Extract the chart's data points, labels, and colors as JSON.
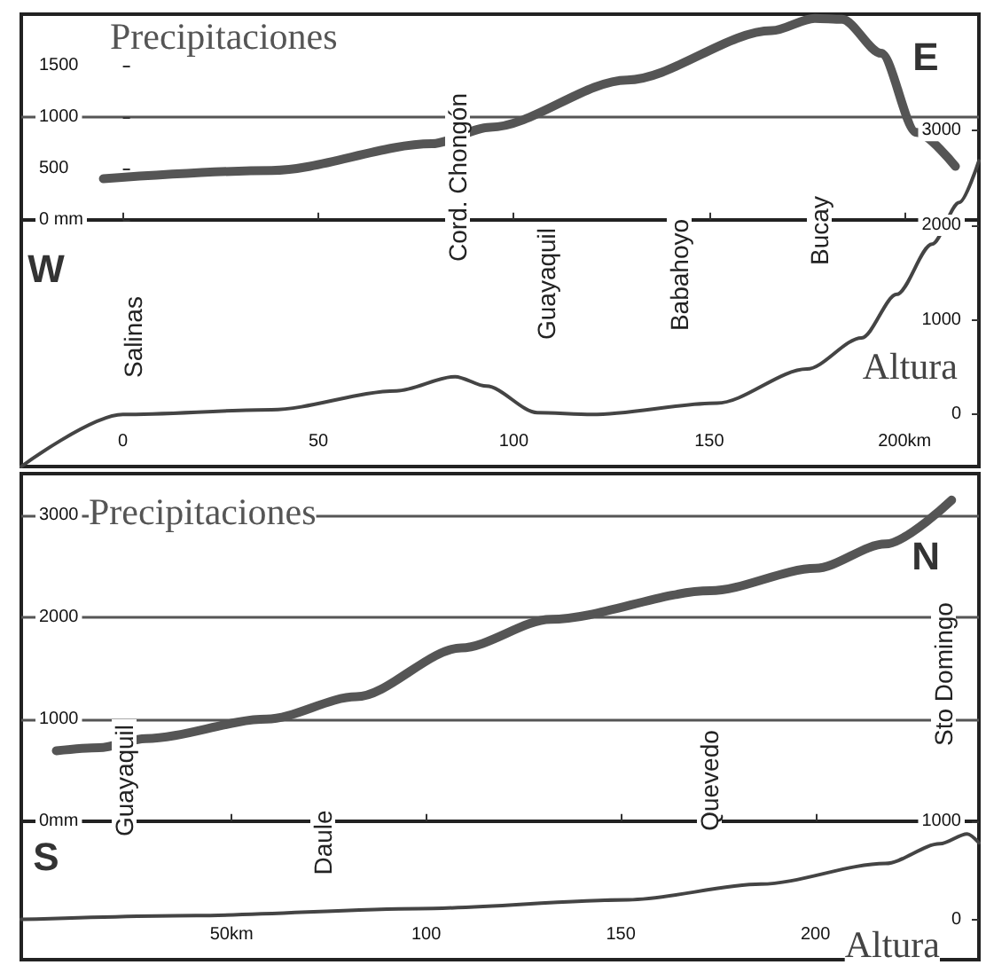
{
  "chart_data": [
    {
      "type": "line",
      "xlim": [
        -26,
        219
      ],
      "xticks": [
        0,
        50,
        100,
        150,
        {
          "value": 200,
          "label": "200km"
        }
      ],
      "ylim": [
        -2400,
        2000
      ],
      "yticks": [
        {
          "value": 0,
          "label": "0 mm"
        },
        500,
        1000,
        1500
      ],
      "y2lim": [
        -550,
        4230
      ],
      "y2ticks": [
        0,
        1000,
        2000,
        3000
      ],
      "legend": false,
      "marker": "none",
      "line_style": "solid",
      "ref_lines": [
        {
          "axis": "y",
          "value": 0
        },
        {
          "axis": "y",
          "value": 1000
        }
      ],
      "annotations": [
        "W",
        "E",
        "Salinas",
        "Cord. Chongón",
        "Guayaquil",
        "Babahoyo",
        "Bucay"
      ],
      "series": [
        {
          "name": "Precipitaciones",
          "color": "#555555",
          "x": [
            -5,
            38,
            79,
            94,
            129,
            166,
            177,
            184,
            194,
            203,
            213
          ],
          "values": [
            400,
            480,
            740,
            900,
            1360,
            1840,
            1960,
            1950,
            1620,
            850,
            520
          ]
        },
        {
          "name": "Altura",
          "color": "#444444",
          "axis": "y2",
          "x": [
            -26,
            0,
            38,
            70,
            85,
            93,
            106,
            120,
            152,
            175,
            189,
            198,
            207,
            214,
            219
          ],
          "values": [
            -550,
            0,
            50,
            250,
            400,
            300,
            20,
            0,
            120,
            480,
            810,
            1270,
            1800,
            2240,
            2680
          ]
        }
      ]
    },
    {
      "type": "line",
      "xlim": [
        -4,
        242
      ],
      "xticks": [
        {
          "value": 50,
          "label": "50km"
        },
        100,
        150,
        200
      ],
      "ylim": [
        -1360,
        3410
      ],
      "yticks": [
        {
          "value": 0,
          "label": "0mm"
        },
        1000,
        2000,
        3000
      ],
      "y2lim": [
        -410,
        4540
      ],
      "y2ticks": [
        0,
        1000
      ],
      "grid": "y",
      "legend": false,
      "marker": "none",
      "line_style": "solid",
      "annotations": [
        "S",
        "N",
        "Guayaquil",
        "Daule",
        "Quevedo",
        "Sto Domingo"
      ],
      "series": [
        {
          "name": "Precipitaciones",
          "color": "#555555",
          "x": [
            5,
            16,
            28,
            59,
            82,
            109,
            132,
            173,
            200,
            218,
            235
          ],
          "values": [
            690,
            720,
            810,
            1000,
            1220,
            1700,
            1980,
            2260,
            2480,
            2720,
            3150
          ]
        },
        {
          "name": "Altura",
          "color": "#444444",
          "axis": "y2",
          "x": [
            -4,
            41,
            98,
            152,
            186,
            218,
            232,
            239,
            242
          ],
          "values": [
            0,
            40,
            110,
            200,
            360,
            570,
            770,
            870,
            780
          ]
        }
      ]
    }
  ]
}
